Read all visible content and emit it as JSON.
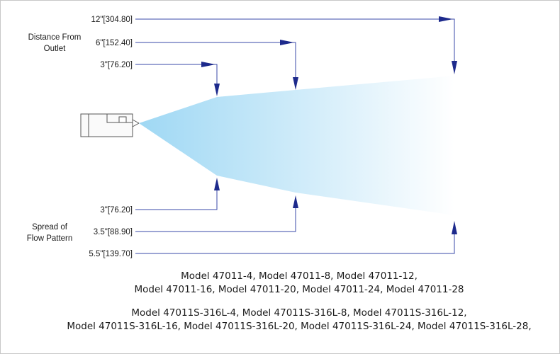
{
  "distance_section": {
    "title_line1": "Distance From",
    "title_line2": "Outlet",
    "labels": [
      "12\"[304.80]",
      "6\"[152.40]",
      "3\"[76.20]"
    ]
  },
  "spread_section": {
    "title_line1": "Spread of",
    "title_line2": "Flow Pattern",
    "labels": [
      "3\"[76.20]",
      "3.5\"[88.90]",
      "5.5\"[139.70]"
    ]
  },
  "colors": {
    "spray_start": "#a8dcf5",
    "spray_end": "#ffffff",
    "dimension_line": "#3a4aa8",
    "arrow": "#1d2a8c"
  },
  "model_groups": [
    {
      "lines": [
        "Model 47011-4, Model 47011-8, Model 47011-12,",
        "Model 47011-16, Model 47011-20, Model 47011-24, Model 47011-28"
      ]
    },
    {
      "lines": [
        "Model 47011S-316L-4, Model 47011S-316L-8, Model 47011S-316L-12,",
        "Model 47011S-316L-16, Model 47011S-316L-20, Model 47011S-316L-24, Model 47011S-316L-28,"
      ]
    }
  ]
}
